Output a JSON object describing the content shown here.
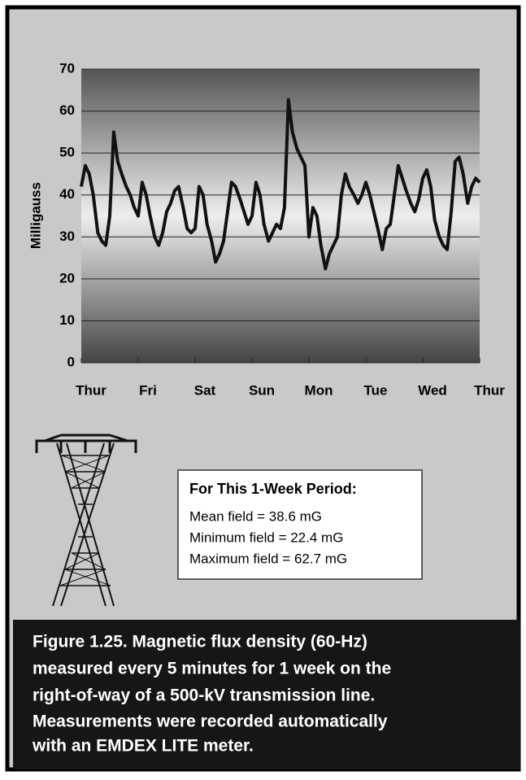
{
  "chart_data": {
    "type": "line",
    "ylabel": "Milligauss",
    "x": [
      0,
      0.07,
      0.14,
      0.21,
      0.29,
      0.36,
      0.43,
      0.5,
      0.57,
      0.64,
      0.71,
      0.79,
      0.86,
      0.93,
      1,
      1.07,
      1.14,
      1.21,
      1.29,
      1.36,
      1.43,
      1.5,
      1.57,
      1.64,
      1.71,
      1.79,
      1.86,
      1.93,
      2,
      2.07,
      2.14,
      2.21,
      2.29,
      2.36,
      2.43,
      2.5,
      2.57,
      2.64,
      2.71,
      2.79,
      2.86,
      2.93,
      3,
      3.07,
      3.14,
      3.21,
      3.29,
      3.36,
      3.43,
      3.5,
      3.57,
      3.64,
      3.71,
      3.79,
      3.86,
      3.93,
      4,
      4.07,
      4.14,
      4.21,
      4.29,
      4.36,
      4.43,
      4.5,
      4.57,
      4.64,
      4.71,
      4.79,
      4.86,
      4.93,
      5,
      5.07,
      5.14,
      5.21,
      5.29,
      5.36,
      5.43,
      5.5,
      5.57,
      5.64,
      5.71,
      5.79,
      5.86,
      5.93,
      6,
      6.07,
      6.14,
      6.21,
      6.29,
      6.36,
      6.43,
      6.5,
      6.57,
      6.64,
      6.71,
      6.79,
      6.86,
      6.93,
      7
    ],
    "series": [
      {
        "color": "#111111",
        "values": [
          42,
          47,
          45,
          40,
          31,
          29,
          28,
          35,
          55,
          48,
          45,
          42,
          40,
          37,
          35,
          43,
          40,
          35,
          30,
          28,
          31,
          36,
          38,
          41,
          42,
          37,
          32,
          31,
          32,
          42,
          40,
          33,
          29,
          24,
          26,
          29,
          36,
          43,
          42,
          39,
          36,
          33,
          35,
          43,
          40,
          33,
          29,
          31,
          33,
          32,
          37,
          62.7,
          55,
          51,
          49,
          47,
          30,
          37,
          35,
          28,
          22.4,
          26,
          28,
          30,
          40,
          45,
          42,
          40,
          38,
          40,
          43,
          40,
          36,
          32,
          27,
          32,
          33,
          40,
          47,
          44,
          41,
          38,
          36,
          39,
          44,
          46,
          42,
          34,
          30,
          28,
          27,
          36,
          48,
          49,
          45,
          38,
          42,
          44,
          43
        ]
      }
    ],
    "xlim": [
      0,
      7
    ],
    "xticks": [
      {
        "value": 0,
        "label": "Thur"
      },
      {
        "value": 1,
        "label": "Fri"
      },
      {
        "value": 2,
        "label": "Sat"
      },
      {
        "value": 3,
        "label": "Sun"
      },
      {
        "value": 4,
        "label": "Mon"
      },
      {
        "value": 5,
        "label": "Tue"
      },
      {
        "value": 6,
        "label": "Wed"
      },
      {
        "value": 7,
        "label": "Thur"
      }
    ],
    "ylim": [
      0,
      70
    ],
    "yticks": [
      0,
      10,
      20,
      30,
      40,
      50,
      60,
      70
    ],
    "grid": true
  },
  "info_box": {
    "title": "For This 1-Week Period:",
    "lines": [
      "Mean field = 38.6 mG",
      "Minimum field = 22.4 mG",
      "Maximum field = 62.7 mG"
    ]
  },
  "caption": {
    "lines": [
      "Figure 1.25. Magnetic flux density (60-Hz)",
      "measured every 5 minutes for 1 week on the",
      "right-of-way of a 500-kV transmission line.",
      "Measurements were recorded automatically",
      "with an EMDEX LITE meter."
    ]
  }
}
